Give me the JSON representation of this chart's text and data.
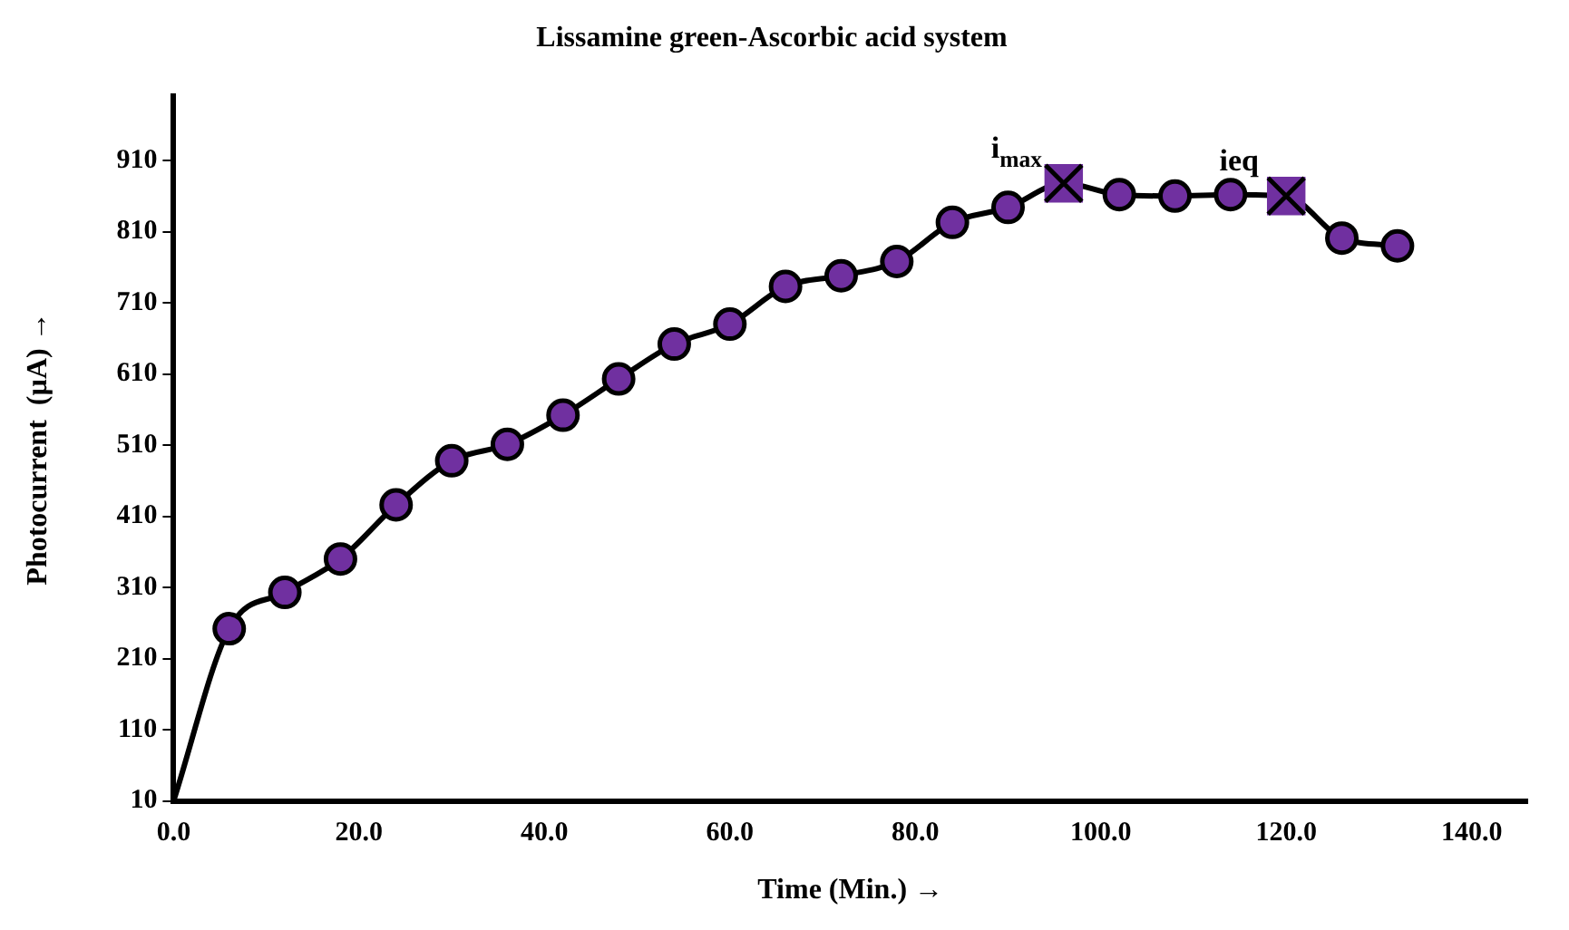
{
  "chart_data": {
    "type": "line",
    "title": "Lissamine green-Ascorbic acid system",
    "xlabel": "Time (Min.) →",
    "ylabel": "Photocurrent  (µA) →",
    "xlim": [
      0,
      146
    ],
    "xticks": [
      {
        "value": 0,
        "label": "0.0"
      },
      {
        "value": 20,
        "label": "20.0"
      },
      {
        "value": 40,
        "label": "40.0"
      },
      {
        "value": 60,
        "label": "60.0"
      },
      {
        "value": 80,
        "label": "80.0"
      },
      {
        "value": 100,
        "label": "100.0"
      },
      {
        "value": 120,
        "label": "120.0"
      },
      {
        "value": 140,
        "label": "140.0"
      }
    ],
    "ylim": [
      10,
      1000
    ],
    "yticks": [
      10,
      110,
      210,
      310,
      410,
      510,
      610,
      710,
      810,
      910
    ],
    "grid": false,
    "legend": false,
    "series": [
      {
        "marker": "none",
        "color": "#000000",
        "x": [
          0,
          6,
          12,
          18,
          24,
          30,
          36,
          42,
          48,
          54,
          60,
          66,
          72,
          78,
          84,
          90,
          96,
          102,
          108,
          114,
          120,
          126,
          132
        ],
        "values": [
          10,
          252,
          303,
          350,
          426,
          488,
          511,
          552,
          603,
          652,
          680,
          733,
          748,
          768,
          823,
          844,
          878,
          862,
          860,
          862,
          860,
          801,
          790
        ]
      },
      {
        "type": "scatter",
        "marker": "circle",
        "color": "#7030a0",
        "x": [
          6,
          12,
          18,
          24,
          30,
          36,
          42,
          48,
          54,
          60,
          66,
          72,
          78,
          84,
          90,
          102,
          108,
          114,
          126,
          132
        ],
        "values": [
          252,
          303,
          350,
          426,
          488,
          511,
          552,
          603,
          652,
          680,
          733,
          748,
          768,
          823,
          844,
          862,
          860,
          862,
          801,
          790
        ]
      },
      {
        "type": "scatter",
        "marker": "square",
        "color": "#7030a0",
        "x": [
          96,
          120
        ],
        "values": [
          878,
          860
        ]
      }
    ],
    "annotations": [
      {
        "text": "i$_{max}$",
        "x": 96,
        "y": 878
      },
      {
        "text": "ieq",
        "x": 120,
        "y": 860
      }
    ]
  }
}
